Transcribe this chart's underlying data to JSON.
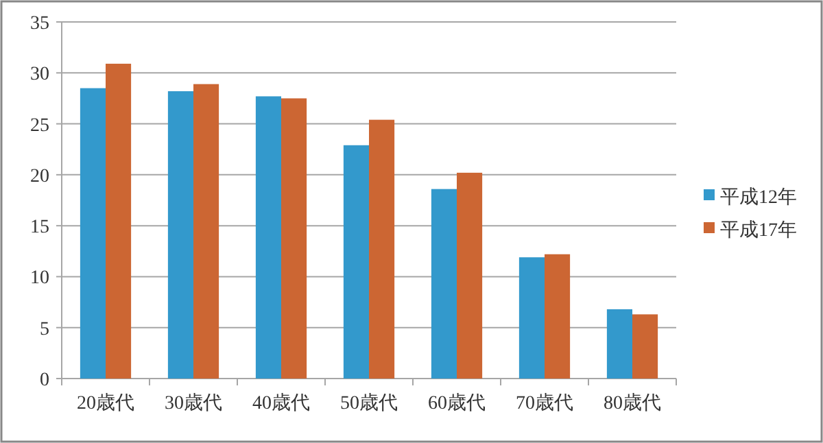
{
  "chart_data": {
    "type": "bar",
    "categories": [
      "20歳代",
      "30歳代",
      "40歳代",
      "50歳代",
      "60歳代",
      "70歳代",
      "80歳代"
    ],
    "series": [
      {
        "name": "平成12年",
        "color": "#3399cc",
        "values": [
          28.5,
          28.2,
          27.7,
          22.9,
          18.6,
          11.9,
          6.8
        ]
      },
      {
        "name": "平成17年",
        "color": "#cc6633",
        "values": [
          30.9,
          28.9,
          27.5,
          25.4,
          20.2,
          12.2,
          6.3
        ]
      }
    ],
    "ylim": [
      0,
      35
    ],
    "yticks": [
      0,
      5,
      10,
      15,
      20,
      25,
      30,
      35
    ],
    "grid": "y",
    "legend": "right"
  }
}
